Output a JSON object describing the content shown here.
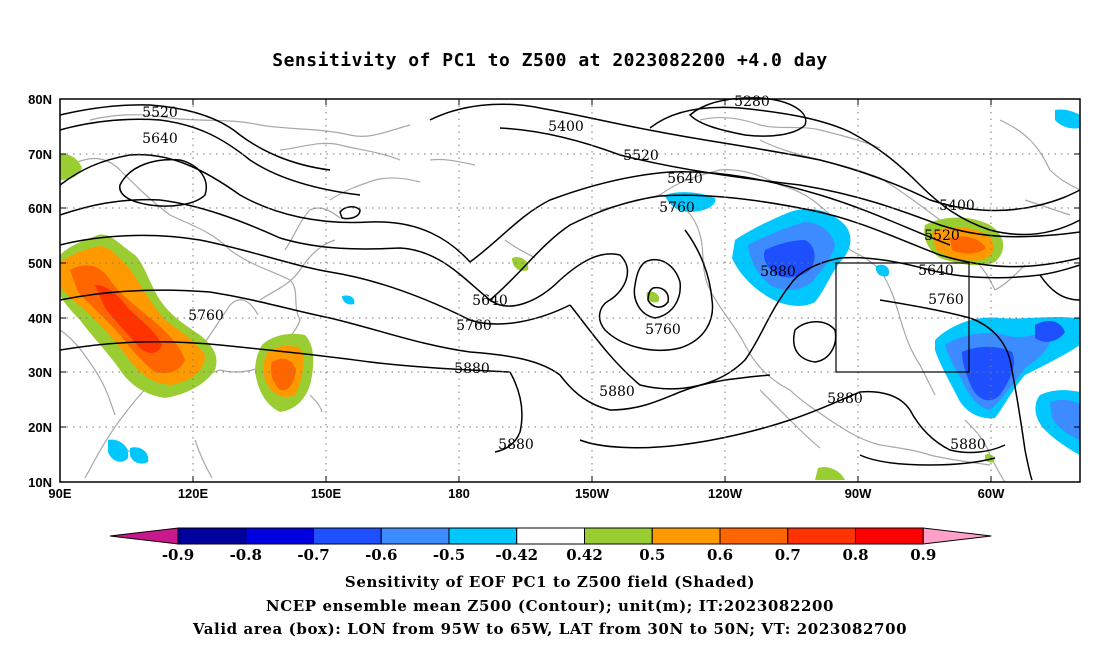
{
  "title": "Sensitivity of PC1 to Z500 at 2023082200 +4.0 day",
  "map": {
    "lat_labels": [
      "80N",
      "70N",
      "60N",
      "50N",
      "40N",
      "30N",
      "20N",
      "10N"
    ],
    "lon_labels": [
      "90E",
      "120E",
      "150E",
      "180",
      "150W",
      "120W",
      "90W",
      "60W"
    ],
    "contour_labels": [
      "5280",
      "5400",
      "5520",
      "5640",
      "5760",
      "5880",
      "5520",
      "5640",
      "5760",
      "5880",
      "5640",
      "5760",
      "5880",
      "5760",
      "5880",
      "5880",
      "5880",
      "5400",
      "5520",
      "5640",
      "5760",
      "5880"
    ],
    "valid_box": {
      "lon_from": "95W",
      "lon_to": "65W",
      "lat_from": "30N",
      "lat_to": "50N"
    }
  },
  "colorbar": {
    "labels": [
      "-0.9",
      "-0.8",
      "-0.7",
      "-0.6",
      "-0.5",
      "-0.42",
      "0.42",
      "0.5",
      "0.6",
      "0.7",
      "0.8",
      "0.9"
    ],
    "colors": [
      "#00009f",
      "#0000e0",
      "#1e50ff",
      "#3c8cff",
      "#00c8ff",
      "#ffffff",
      "#9acd32",
      "#ff9900",
      "#ff6600",
      "#ff3300",
      "#ff0000"
    ],
    "low_end_color": "#c8188c",
    "high_end_color": "#ffa0c8"
  },
  "captions": {
    "line1": "Sensitivity of EOF PC1 to Z500 field (Shaded)",
    "line2": "NCEP ensemble mean Z500 (Contour); unit(m); IT:2023082200",
    "line3": "Valid area (box): LON from 95W to 65W, LAT from 30N to 50N; VT: 2023082700"
  }
}
